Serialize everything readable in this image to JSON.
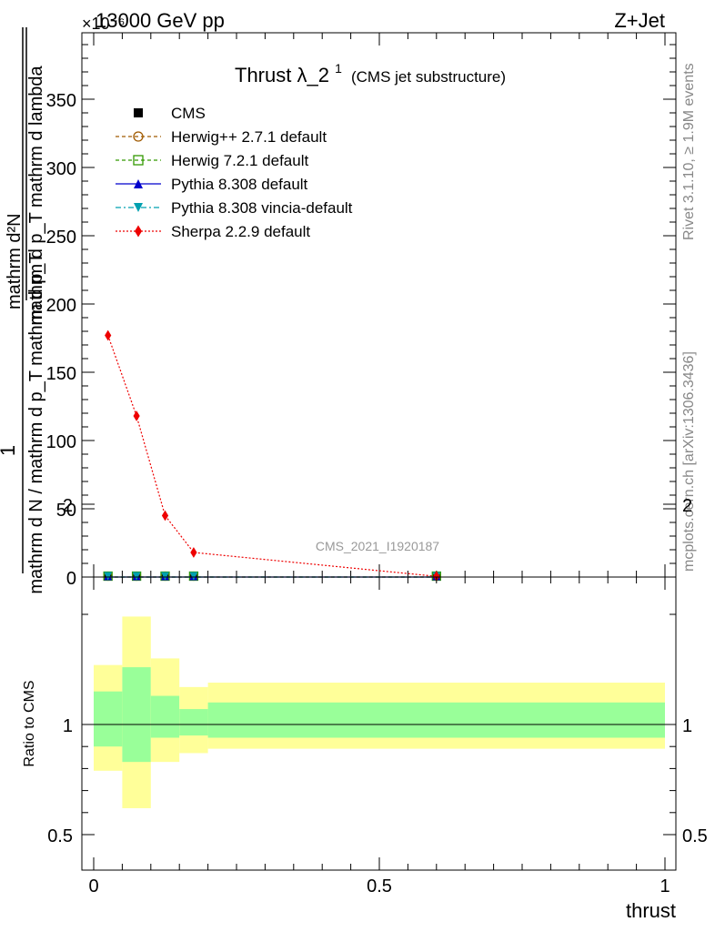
{
  "header": {
    "energy": "13000 GeV pp",
    "process": "Z+Jet",
    "exponent": "×10⁻⁶"
  },
  "side_labels": {
    "rivet": "Rivet 3.1.10, ≥ 1.9M events",
    "mcplots": "mcplots.cern.ch [arXiv:1306.3436]"
  },
  "watermark": "CMS_2021_I1920187",
  "chart_data": {
    "type": "line",
    "title": "Thrust λ_2¹ (CMS jet substructure)",
    "title_main": "Thrust λ_2",
    "title_sup": "1",
    "title_suffix": "(CMS jet substructure)",
    "xlabel": "thrust",
    "ylabel_numerator": "1",
    "ylabel_denominator": "mathrm d N / mathrm d p_T mathrm d p_T mathrm d lambda",
    "ylabel_top": "mathrm d²N",
    "ylabel_frac_num": "mathrm d²N",
    "ylabel_frac_den": "mathrm d p_T mathrm d lambda",
    "ylabel_main_num": "1",
    "ylabel_main_den": "mathrm d N / mathrm d p_T mathrm d p_T",
    "xlim": [
      0,
      1
    ],
    "ylim": [
      0,
      400
    ],
    "y_ticks": [
      0,
      50,
      100,
      150,
      200,
      250,
      300,
      350
    ],
    "y_tick_labels": [
      "0",
      "50",
      "100",
      "150",
      "200",
      "250",
      "300",
      "350"
    ],
    "x_ticks": [
      0,
      0.5,
      1
    ],
    "x_tick_labels": [
      "0",
      "0.5",
      "1"
    ],
    "bin_edges": [
      0,
      0.05,
      0.1,
      0.15,
      0.2,
      1.0
    ],
    "series": [
      {
        "name": "CMS",
        "color": "#000000",
        "marker": "square-filled",
        "x": [
          0.025,
          0.075,
          0.125,
          0.175,
          0.6
        ],
        "y": [
          0,
          0,
          0,
          0,
          0
        ]
      },
      {
        "name": "Herwig++ 2.7.1 default",
        "color": "#a05a00",
        "marker": "circle-open",
        "dash": "dashed",
        "x": [
          0.025,
          0.075,
          0.125,
          0.175,
          0.6
        ],
        "y": [
          0,
          0,
          0,
          0,
          0
        ]
      },
      {
        "name": "Herwig 7.2.1 default",
        "color": "#339900",
        "marker": "square-open",
        "dash": "dashed",
        "x": [
          0.025,
          0.075,
          0.125,
          0.175,
          0.6
        ],
        "y": [
          0,
          0,
          0,
          0,
          0
        ]
      },
      {
        "name": "Pythia 8.308 default",
        "color": "#0000cc",
        "marker": "triangle-up",
        "dash": "solid",
        "x": [
          0.025,
          0.075,
          0.125,
          0.175,
          0.6
        ],
        "y": [
          0,
          0,
          0,
          0,
          0
        ]
      },
      {
        "name": "Pythia 8.308 vincia-default",
        "color": "#00a0b0",
        "marker": "triangle-down",
        "dash": "dashdot",
        "x": [
          0.025,
          0.075,
          0.125,
          0.175,
          0.6
        ],
        "y": [
          0,
          0,
          0,
          0,
          0
        ]
      },
      {
        "name": "Sherpa 2.2.9 default",
        "color": "#ee0000",
        "marker": "diamond",
        "dash": "dotted",
        "x": [
          0.025,
          0.075,
          0.125,
          0.175,
          0.6
        ],
        "y": [
          177,
          118,
          45,
          18,
          0.5
        ]
      }
    ],
    "ratio": {
      "ylabel": "Ratio to CMS",
      "ylim": [
        0.4,
        2.4
      ],
      "y_ticks": [
        0.5,
        1,
        2
      ],
      "y_tick_labels": [
        "0.5",
        "1",
        "2"
      ],
      "bins": [
        {
          "x0": 0.0,
          "x1": 0.05,
          "inner": [
            0.9,
            1.15
          ],
          "outer": [
            0.79,
            1.27
          ]
        },
        {
          "x0": 0.05,
          "x1": 0.1,
          "inner": [
            0.83,
            1.26
          ],
          "outer": [
            0.62,
            1.49
          ]
        },
        {
          "x0": 0.1,
          "x1": 0.15,
          "inner": [
            0.94,
            1.13
          ],
          "outer": [
            0.83,
            1.3
          ]
        },
        {
          "x0": 0.15,
          "x1": 0.2,
          "inner": [
            0.95,
            1.07
          ],
          "outer": [
            0.87,
            1.17
          ]
        },
        {
          "x0": 0.2,
          "x1": 1.0,
          "inner": [
            0.94,
            1.1
          ],
          "outer": [
            0.89,
            1.19
          ]
        }
      ],
      "inner_color": "#99ff99",
      "outer_color": "#ffff99"
    }
  }
}
